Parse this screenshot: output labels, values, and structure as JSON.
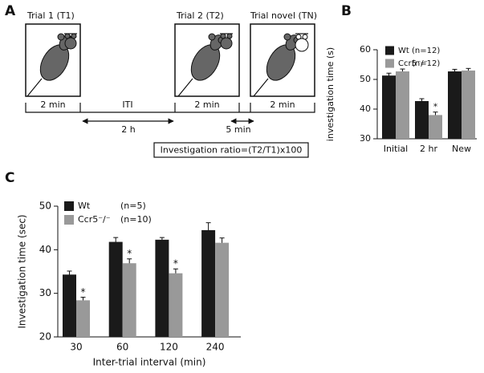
{
  "diagram": {
    "panel": "A",
    "trials": [
      {
        "label": "Trial 1 (T1)",
        "duration": "2 min"
      },
      {
        "label": "Trial 2 (T2)",
        "duration": "2 min"
      },
      {
        "label": "Trial novel (TN)",
        "duration": "2 min"
      }
    ],
    "iti": "ITI",
    "intervals": [
      "2 h",
      "5 min"
    ],
    "formula": "Investigation ratio=(T2/T1)x100"
  },
  "chart_data": [
    {
      "type": "bar",
      "panel": "B",
      "y_label": "investigation time (s)",
      "categories": [
        "Initial",
        "2 hr",
        "New"
      ],
      "series": [
        {
          "name": "Wt",
          "n_label": "(n=12)",
          "color": "#1a1a1a",
          "values": [
            51.3,
            42.7,
            52.7
          ],
          "errors": [
            0.8,
            0.8,
            0.7
          ],
          "markers": [
            null,
            null,
            null
          ]
        },
        {
          "name": "Ccr5⁻/⁻",
          "n_label": "(n=12)",
          "color": "#999999",
          "values": [
            52.7,
            38.0,
            53.0
          ],
          "errors": [
            0.8,
            1.0,
            0.7
          ],
          "markers": [
            null,
            "*",
            null
          ]
        }
      ],
      "ylim": [
        30,
        60
      ],
      "yticks": [
        30,
        40,
        50,
        60
      ]
    },
    {
      "type": "bar",
      "panel": "C",
      "y_label": "Investigation time (sec)",
      "x_label": "Inter-trial interval (min)",
      "categories": [
        "30",
        "60",
        "120",
        "240"
      ],
      "series": [
        {
          "name": "Wt",
          "n_label": "(n=5)",
          "color": "#1a1a1a",
          "values": [
            34.3,
            41.8,
            42.3,
            44.5
          ],
          "errors": [
            0.8,
            1.0,
            0.5,
            1.7
          ],
          "markers": [
            null,
            null,
            null,
            null
          ]
        },
        {
          "name": "Ccr5⁻/⁻",
          "n_label": "(n=10)",
          "color": "#999999",
          "values": [
            28.4,
            36.9,
            34.6,
            41.6
          ],
          "errors": [
            0.7,
            1.0,
            1.0,
            1.1
          ],
          "markers": [
            "*",
            "*",
            "*",
            null
          ]
        }
      ],
      "ylim": [
        20,
        50
      ],
      "yticks": [
        20,
        30,
        40,
        50
      ]
    }
  ]
}
